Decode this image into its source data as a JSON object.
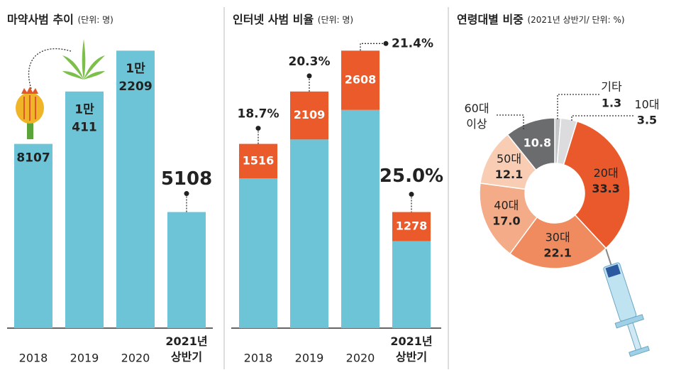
{
  "chart_data": [
    {
      "type": "bar",
      "title": "마약사범 추이",
      "subtitle": "(단위: 명)",
      "categories": [
        "2018",
        "2019",
        "2020",
        "2021년 상반기"
      ],
      "values": [
        8107,
        10411,
        12209,
        5108
      ],
      "value_labels": [
        "8107",
        "1만 411",
        "1만 2209",
        "5108"
      ],
      "color": "#6cc4d6",
      "ylim": [
        0,
        14000
      ]
    },
    {
      "type": "stacked-bar",
      "title": "인터넷 사범 비율",
      "subtitle": "(단위: 명)",
      "categories": [
        "2018",
        "2019",
        "2020",
        "2021년 상반기"
      ],
      "series": [
        {
          "color": "#6cc4d6",
          "values": [
            6591,
            8302,
            9601,
            3830
          ]
        },
        {
          "color": "#ea5a2a",
          "values": [
            1516,
            2109,
            2608,
            1278
          ]
        }
      ],
      "shares": [
        18.7,
        20.3,
        21.4,
        25.0
      ],
      "share_labels": [
        "18.7%",
        "20.3%",
        "21.4%",
        "25.0%"
      ],
      "ylim": [
        0,
        14000
      ]
    },
    {
      "type": "pie",
      "title": "연령대별 비중",
      "subtitle": "(2021년 상반기/ 단위: %)",
      "categories": [
        "기타",
        "10대",
        "20대",
        "30대",
        "40대",
        "50대",
        "60대 이상"
      ],
      "values": [
        1.3,
        3.5,
        33.3,
        22.1,
        17.0,
        12.1,
        10.8
      ],
      "value_labels": [
        "1.3",
        "3.5",
        "33.3",
        "22.1",
        "17.0",
        "12.1",
        "10.8"
      ],
      "colors": [
        "#c6c7c9",
        "#dcdcde",
        "#e9592b",
        "#ef8b5f",
        "#f4ab87",
        "#f8cdb4",
        "#6b6c6e"
      ]
    }
  ]
}
